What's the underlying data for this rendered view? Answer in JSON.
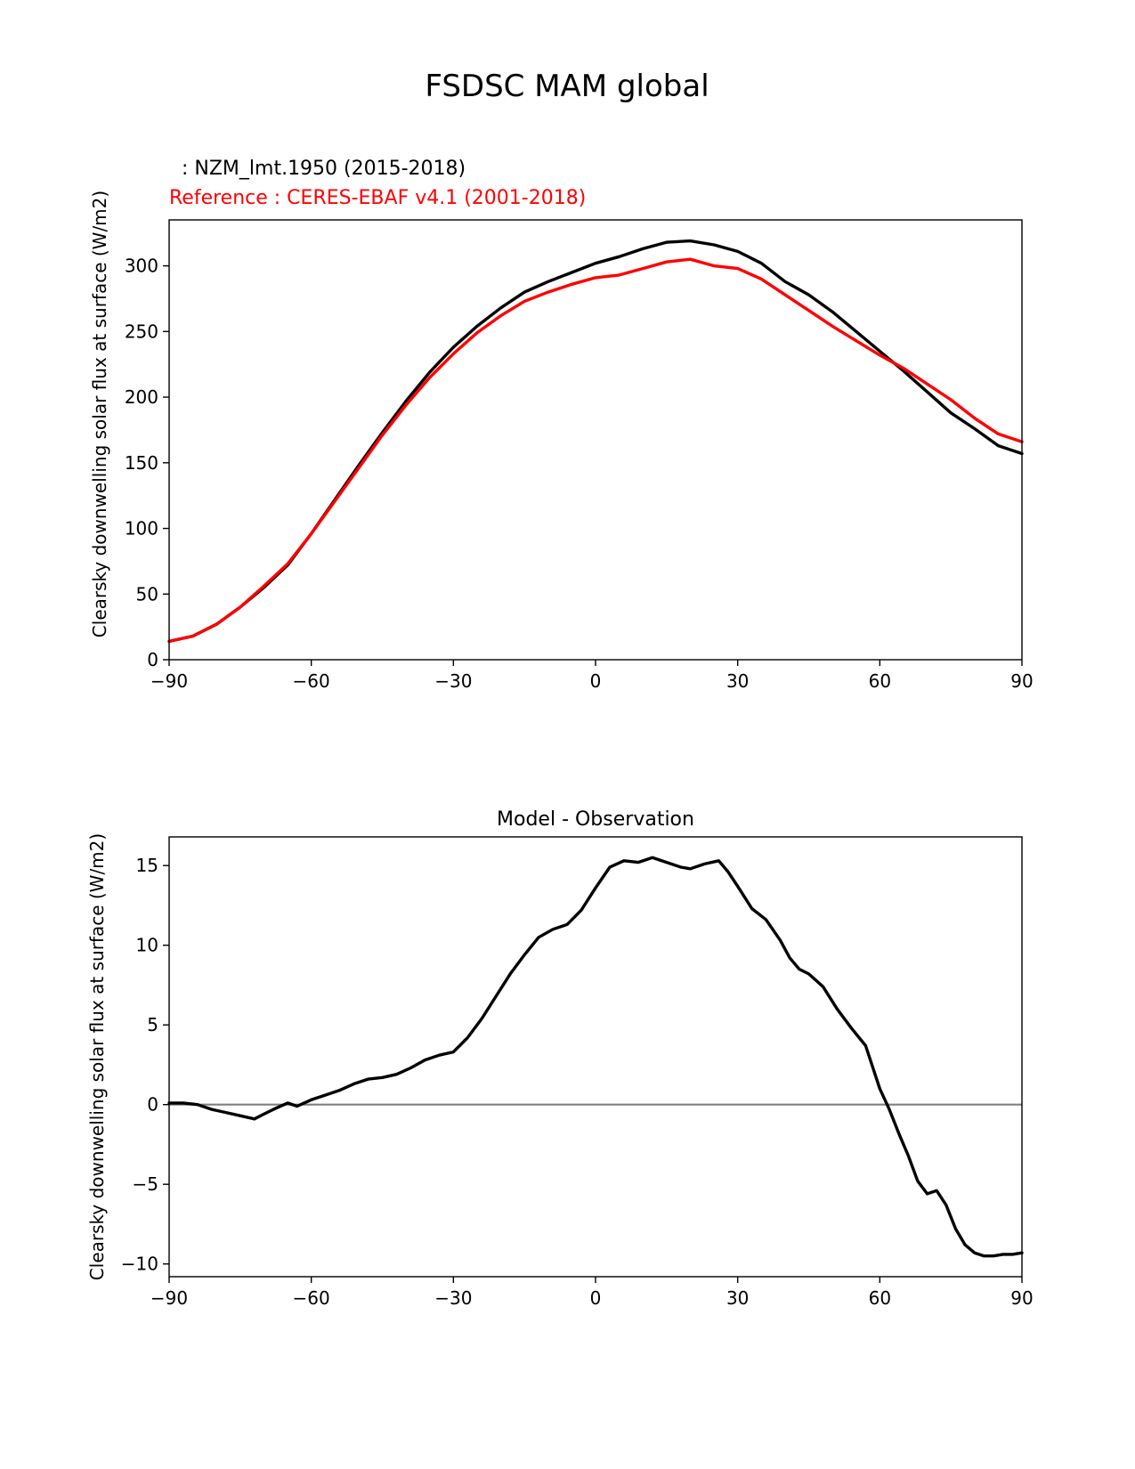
{
  "figure": {
    "title": "FSDSC MAM global"
  },
  "colors": {
    "model": "#000000",
    "reference": "#ff0000",
    "zero_line": "#808080"
  },
  "chart_data": [
    {
      "type": "line",
      "title_model": "  : NZM_lmt.1950 (2015-2018)",
      "title_reference": "Reference : CERES-EBAF v4.1 (2001-2018)",
      "xlabel": "",
      "ylabel": "Clearsky downwelling solar flux at surface (W/m2)",
      "xlim": [
        -90,
        90
      ],
      "ylim": [
        0,
        335
      ],
      "xticks": [
        -90,
        -60,
        -30,
        0,
        30,
        60,
        90
      ],
      "xtick_labels": [
        "−90",
        "−60",
        "−30",
        "0",
        "30",
        "60",
        "90"
      ],
      "yticks": [
        0,
        50,
        100,
        150,
        200,
        250,
        300
      ],
      "ytick_labels": [
        "0",
        "50",
        "100",
        "150",
        "200",
        "250",
        "300"
      ],
      "series": [
        {
          "name": "NZM_lmt.1950 (2015-2018)",
          "color": "#000000",
          "x": [
            -90,
            -85,
            -80,
            -75,
            -70,
            -65,
            -60,
            -55,
            -50,
            -45,
            -40,
            -35,
            -30,
            -25,
            -20,
            -15,
            -10,
            -5,
            0,
            5,
            10,
            15,
            20,
            25,
            30,
            35,
            40,
            45,
            50,
            55,
            60,
            65,
            70,
            75,
            80,
            85,
            90
          ],
          "values": [
            14,
            18,
            27,
            40,
            55,
            72,
            96,
            122,
            148,
            173,
            197,
            219,
            238,
            254,
            268,
            280,
            288,
            295,
            302,
            307,
            313,
            318,
            319,
            316,
            311,
            302,
            288,
            278,
            265,
            250,
            235,
            220,
            204,
            188,
            176,
            163,
            157
          ]
        },
        {
          "name": "Reference : CERES-EBAF v4.1 (2001-2018)",
          "color": "#ff0000",
          "x": [
            -90,
            -85,
            -80,
            -75,
            -70,
            -65,
            -60,
            -55,
            -50,
            -45,
            -40,
            -35,
            -30,
            -25,
            -20,
            -15,
            -10,
            -5,
            0,
            5,
            10,
            15,
            20,
            25,
            30,
            35,
            40,
            45,
            50,
            55,
            60,
            65,
            70,
            75,
            80,
            85,
            90
          ],
          "values": [
            14,
            18,
            27,
            40,
            56,
            73,
            96,
            121,
            146,
            171,
            194,
            215,
            233,
            249,
            262,
            273,
            280,
            286,
            291,
            293,
            298,
            303,
            305,
            300,
            298,
            290,
            278,
            266,
            254,
            243,
            232,
            222,
            210,
            198,
            184,
            172,
            166
          ]
        }
      ]
    },
    {
      "type": "line",
      "title": "Model - Observation",
      "xlabel": "",
      "ylabel": "Clearsky downwelling solar flux at surface (W/m2)",
      "xlim": [
        -90,
        90
      ],
      "ylim": [
        -10.8,
        16.8
      ],
      "xticks": [
        -90,
        -60,
        -30,
        0,
        30,
        60,
        90
      ],
      "xtick_labels": [
        "−90",
        "−60",
        "−30",
        "0",
        "30",
        "60",
        "90"
      ],
      "yticks": [
        -10,
        -5,
        0,
        5,
        10,
        15
      ],
      "ytick_labels": [
        "−10",
        "−5",
        "0",
        "5",
        "10",
        "15"
      ],
      "hline": 0,
      "series": [
        {
          "name": "Model - Observation",
          "color": "#000000",
          "x": [
            -90,
            -87,
            -84,
            -81,
            -78,
            -75,
            -72,
            -70,
            -68,
            -65,
            -63,
            -60,
            -57,
            -54,
            -51,
            -48,
            -45,
            -42,
            -39,
            -36,
            -33,
            -30,
            -27,
            -24,
            -21,
            -18,
            -15,
            -12,
            -9,
            -6,
            -3,
            0,
            3,
            6,
            9,
            12,
            15,
            18,
            20,
            23,
            26,
            28,
            30,
            33,
            36,
            39,
            41,
            43,
            45,
            48,
            51,
            54,
            57,
            60,
            62,
            64,
            66,
            68,
            70,
            72,
            74,
            76,
            78,
            80,
            82,
            84,
            86,
            88,
            90
          ],
          "values": [
            0.1,
            0.1,
            0.0,
            -0.3,
            -0.5,
            -0.7,
            -0.9,
            -0.6,
            -0.3,
            0.1,
            -0.1,
            0.3,
            0.6,
            0.9,
            1.3,
            1.6,
            1.7,
            1.9,
            2.3,
            2.8,
            3.1,
            3.3,
            4.2,
            5.4,
            6.8,
            8.2,
            9.4,
            10.5,
            11.0,
            11.3,
            12.2,
            13.6,
            14.9,
            15.3,
            15.2,
            15.5,
            15.2,
            14.9,
            14.8,
            15.1,
            15.3,
            14.6,
            13.7,
            12.3,
            11.6,
            10.3,
            9.2,
            8.5,
            8.2,
            7.4,
            6.0,
            4.8,
            3.7,
            1.0,
            -0.3,
            -1.8,
            -3.2,
            -4.8,
            -5.6,
            -5.4,
            -6.3,
            -7.8,
            -8.8,
            -9.3,
            -9.5,
            -9.5,
            -9.4,
            -9.4,
            -9.3
          ]
        }
      ]
    }
  ]
}
